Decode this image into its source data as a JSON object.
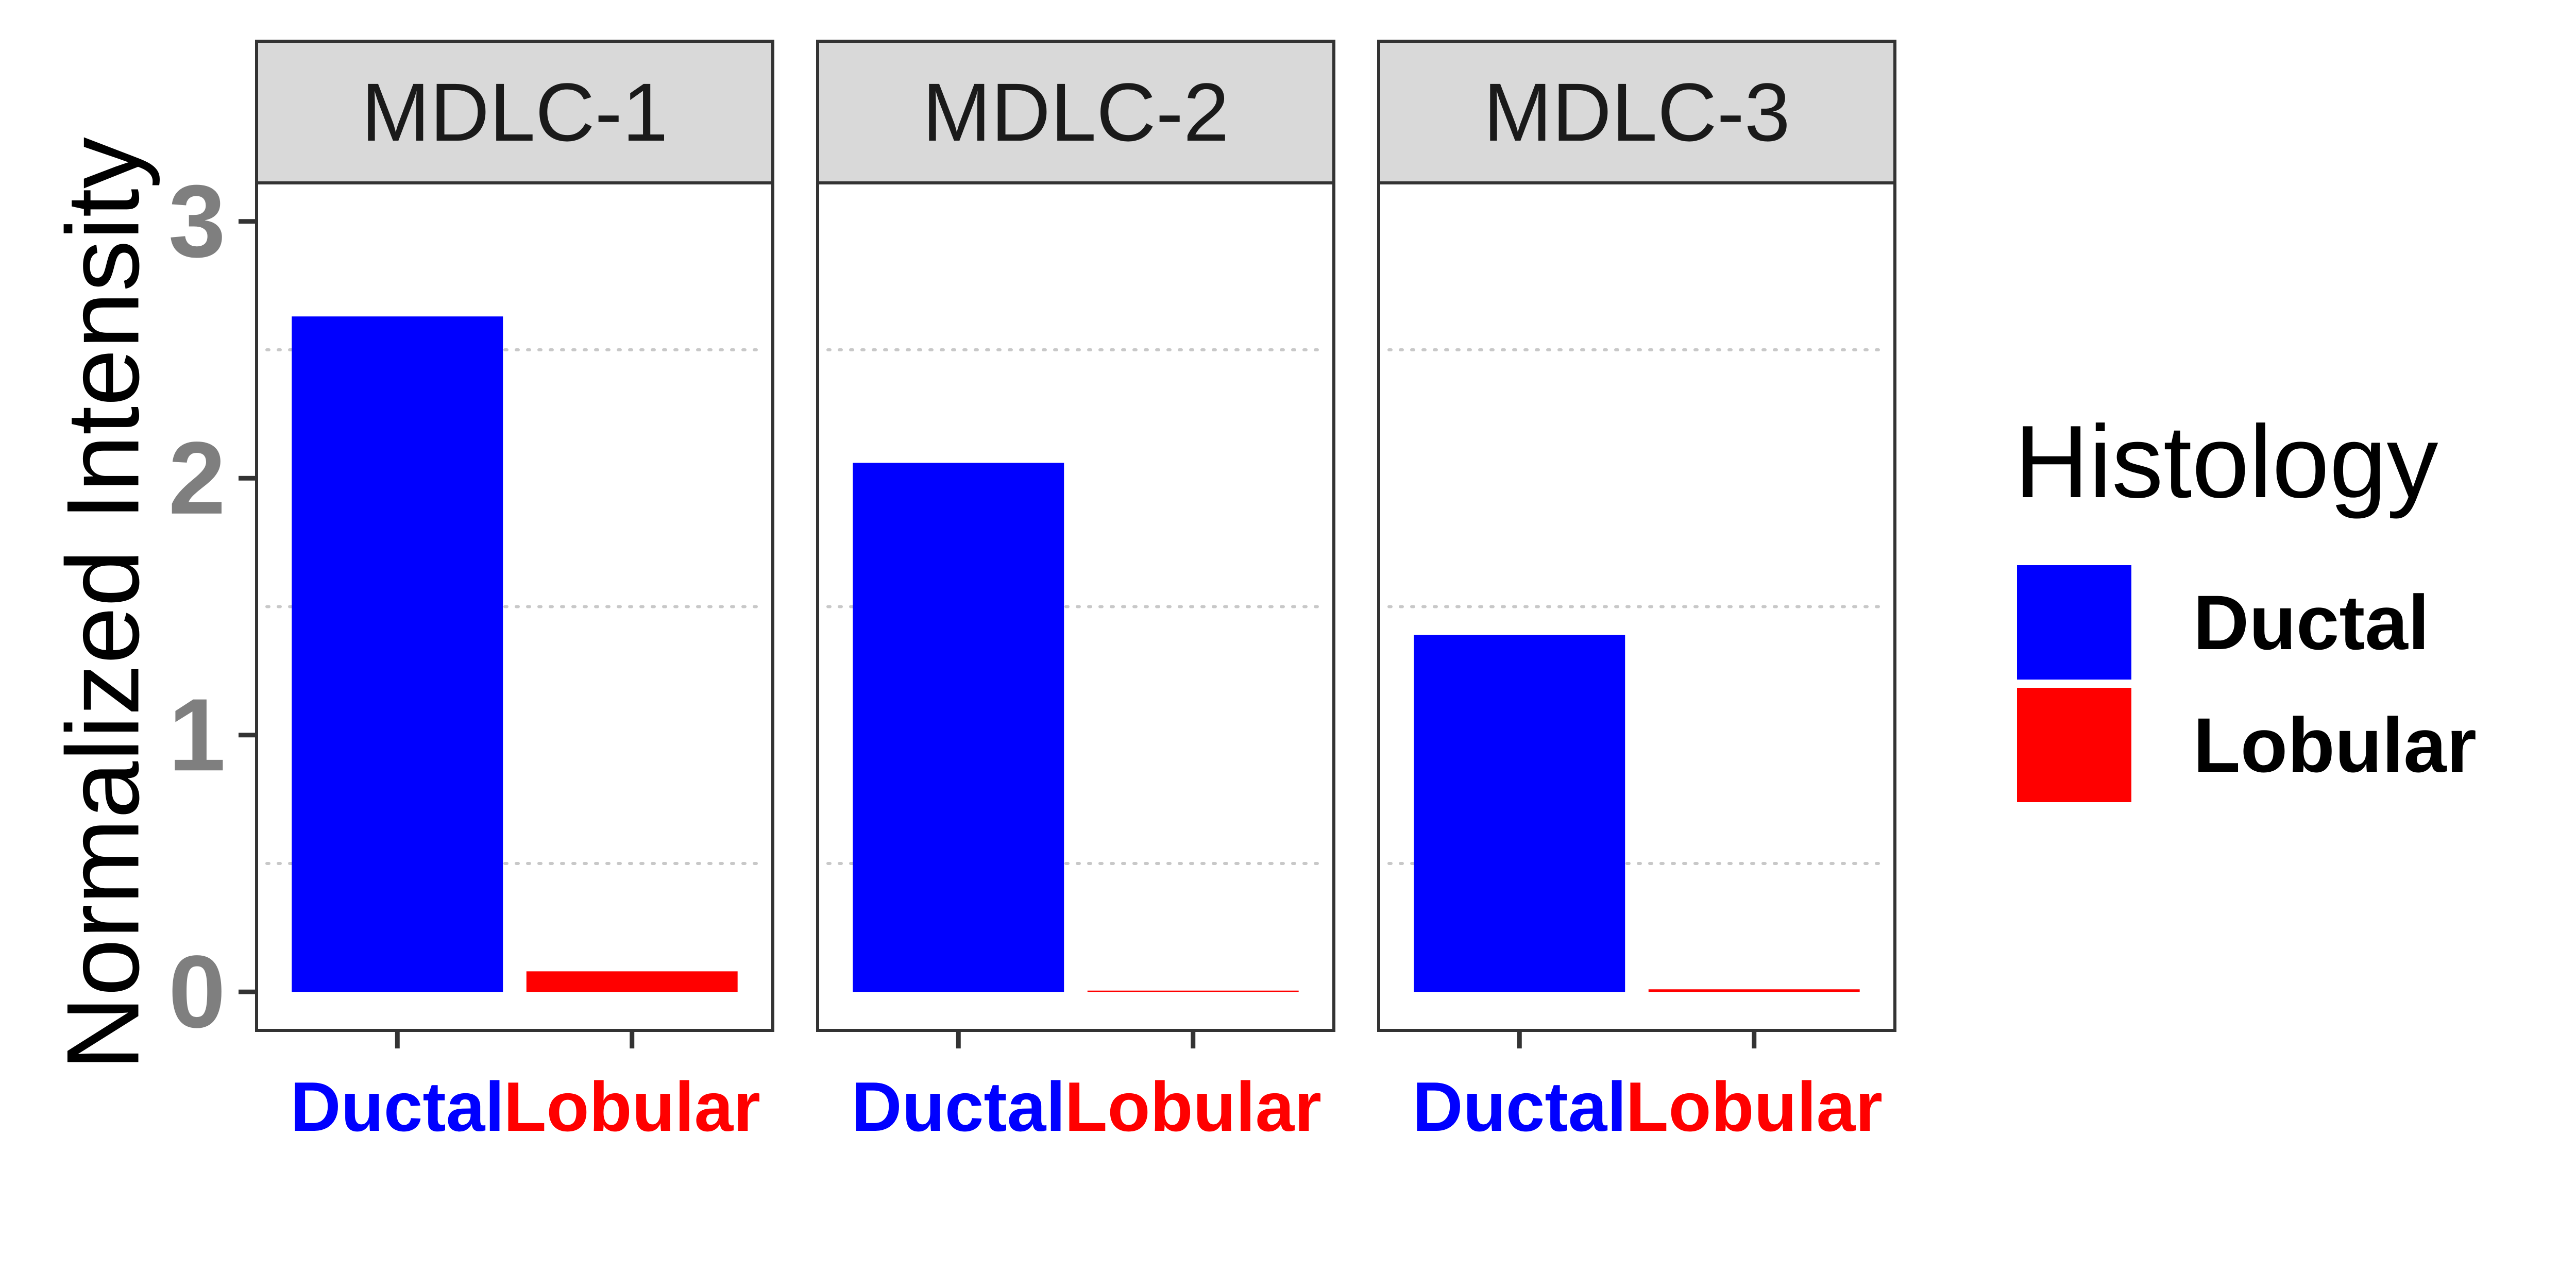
{
  "chart_data": {
    "type": "bar",
    "ylabel": "Normalized Intensity",
    "ylim": [
      -0.15,
      3.15
    ],
    "yticks": [
      "0",
      "1",
      "2",
      "3"
    ],
    "grid": "dotted horizontal minor gridlines",
    "categories": [
      "Ductal",
      "Lobular"
    ],
    "category_colors": {
      "Ductal": "#0000FF",
      "Lobular": "#FF0000"
    },
    "panels": [
      {
        "title": "MDLC-1",
        "values": [
          2.63,
          0.08
        ]
      },
      {
        "title": "MDLC-2",
        "values": [
          2.06,
          0.005
        ]
      },
      {
        "title": "MDLC-3",
        "values": [
          1.39,
          0.01
        ]
      }
    ],
    "legend": {
      "title": "Histology",
      "position": "right",
      "items": [
        {
          "label": "Ductal",
          "color": "#0000FF"
        },
        {
          "label": "Lobular",
          "color": "#FF0000"
        }
      ]
    }
  }
}
